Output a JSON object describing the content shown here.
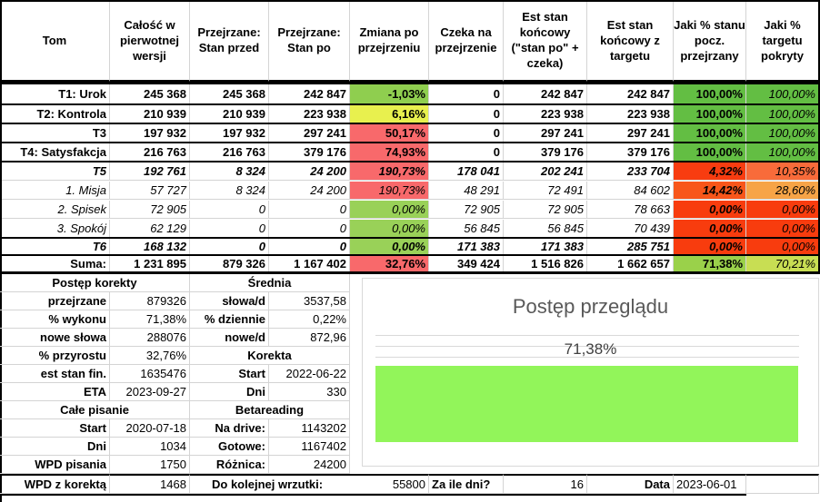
{
  "headers": {
    "tom": "Tom",
    "calosc": "Całość w pierwotnej wersji",
    "przed": "Przejrzane: Stan przed",
    "po": "Przejrzane: Stan po",
    "zmiana": "Zmiana po przejrzeniu",
    "czeka": "Czeka na przejrzenie",
    "est_stan": "Est stan końcowy (\"stan po\" + czeka)",
    "est_target": "Est stan końcowy z targetu",
    "jaki_stan": "Jaki % stanu pocz. przejrzany",
    "jaki_target": "Jaki % targetu pokryty"
  },
  "rows": [
    {
      "tom": "T1: Urok",
      "calosc": "245 368",
      "przed": "245 368",
      "po": "242 847",
      "zmiana": "-1,03%",
      "czeka": "0",
      "est_stan": "242 847",
      "est_target": "242 847",
      "jaki_stan": "100,00%",
      "jaki_target": "100,00%"
    },
    {
      "tom": "T2: Kontrola",
      "calosc": "210 939",
      "przed": "210 939",
      "po": "223 938",
      "zmiana": "6,16%",
      "czeka": "0",
      "est_stan": "223 938",
      "est_target": "223 938",
      "jaki_stan": "100,00%",
      "jaki_target": "100,00%"
    },
    {
      "tom": "T3",
      "calosc": "197 932",
      "przed": "197 932",
      "po": "297 241",
      "zmiana": "50,17%",
      "czeka": "0",
      "est_stan": "297 241",
      "est_target": "297 241",
      "jaki_stan": "100,00%",
      "jaki_target": "100,00%"
    },
    {
      "tom": "T4: Satysfakcja",
      "calosc": "216 763",
      "przed": "216 763",
      "po": "379 176",
      "zmiana": "74,93%",
      "czeka": "0",
      "est_stan": "379 176",
      "est_target": "379 176",
      "jaki_stan": "100,00%",
      "jaki_target": "100,00%"
    },
    {
      "tom": "T5",
      "calosc": "192 761",
      "przed": "8 324",
      "po": "24 200",
      "zmiana": "190,73%",
      "czeka": "178 041",
      "est_stan": "202 241",
      "est_target": "233 704",
      "jaki_stan": "4,32%",
      "jaki_target": "10,35%"
    },
    {
      "tom": "1. Misja",
      "calosc": "57 727",
      "przed": "8 324",
      "po": "24 200",
      "zmiana": "190,73%",
      "czeka": "48 291",
      "est_stan": "72 491",
      "est_target": "84 602",
      "jaki_stan": "14,42%",
      "jaki_target": "28,60%"
    },
    {
      "tom": "2. Spisek",
      "calosc": "72 905",
      "przed": "0",
      "po": "0",
      "zmiana": "0,00%",
      "czeka": "72 905",
      "est_stan": "72 905",
      "est_target": "78 663",
      "jaki_stan": "0,00%",
      "jaki_target": "0,00%"
    },
    {
      "tom": "3. Spokój",
      "calosc": "62 129",
      "przed": "0",
      "po": "0",
      "zmiana": "0,00%",
      "czeka": "56 845",
      "est_stan": "56 845",
      "est_target": "70 439",
      "jaki_stan": "0,00%",
      "jaki_target": "0,00%"
    },
    {
      "tom": "T6",
      "calosc": "168 132",
      "przed": "0",
      "po": "0",
      "zmiana": "0,00%",
      "czeka": "171 383",
      "est_stan": "171 383",
      "est_target": "285 751",
      "jaki_stan": "0,00%",
      "jaki_target": "0,00%"
    },
    {
      "tom": "Suma:",
      "calosc": "1 231 895",
      "przed": "879 326",
      "po": "1 167 402",
      "zmiana": "32,76%",
      "czeka": "349 424",
      "est_stan": "1 516 826",
      "est_target": "1 662 657",
      "jaki_stan": "71,38%",
      "jaki_target": "70,21%"
    }
  ],
  "colors": {
    "zmiana": [
      "#8fce4f",
      "#e8f04e",
      "#f8696b",
      "#f8696b",
      "#f8696b",
      "#f8696b",
      "#99d158",
      "#99d158",
      "#99d158",
      "#f8696b"
    ],
    "jaki_stan": [
      "#63be43",
      "#63be43",
      "#63be43",
      "#63be43",
      "#f83c10",
      "#f8561a",
      "#f83c0e",
      "#f83c0e",
      "#f83c0e",
      "#9ad14a"
    ],
    "jaki_target": [
      "#63be43",
      "#63be43",
      "#63be43",
      "#63be43",
      "#f86b3a",
      "#f7a447",
      "#f83c0e",
      "#f83c0e",
      "#f83c0e",
      "#c8de53"
    ]
  },
  "postep": {
    "title": "Postęp korekty",
    "przejrzane_label": "przejrzane",
    "przejrzane": "879326",
    "wykonu_label": "% wykonu",
    "wykonu": "71,38%",
    "nowe_label": "nowe słowa",
    "nowe": "288076",
    "przyrostu_label": "% przyrostu",
    "przyrostu": "32,76%",
    "est_label": "est stan fin.",
    "est": "1635476",
    "eta_label": "ETA",
    "eta": "2023-09-27"
  },
  "srednia": {
    "title": "Średnia",
    "slowa_label": "słowa/d",
    "slowa": "3537,58",
    "dziennie_label": "% dziennie",
    "dziennie": "0,22%",
    "nowe_label": "nowe/d",
    "nowe": "872,96"
  },
  "korekta": {
    "title": "Korekta",
    "start_label": "Start",
    "start": "2022-06-22",
    "dni_label": "Dni",
    "dni": "330"
  },
  "cale": {
    "title": "Całe pisanie",
    "start_label": "Start",
    "start": "2020-07-18",
    "dni_label": "Dni",
    "dni": "1034",
    "wpd_label": "WPD pisania",
    "wpd": "1750",
    "wpdk_label": "WPD z korektą",
    "wpdk": "1468"
  },
  "beta": {
    "title": "Betareading",
    "drive_label": "Na drive:",
    "drive": "1143202",
    "gotowe_label": "Gotowe:",
    "gotowe": "1167402",
    "roznica_label": "Różnica:",
    "roznica": "24200"
  },
  "bottom": {
    "wrzutki_label": "Do kolejnej wrzutki:",
    "wrzutki": "55800",
    "dni_label": "Za ile dni?",
    "dni": "16",
    "data_label": "Data",
    "data": "2023-06-01"
  },
  "chart_data": {
    "type": "bar",
    "title": "Postęp przeglądu",
    "values": [
      71.38
    ],
    "value_label": "71,38%",
    "xlim": [
      0,
      100
    ],
    "bar_color": "#92f55a"
  }
}
